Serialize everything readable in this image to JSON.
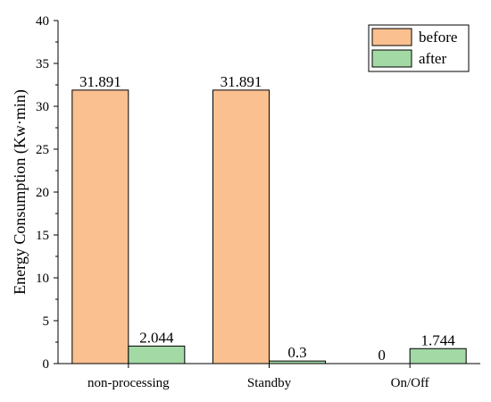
{
  "chart_data": {
    "type": "bar",
    "ylabel": "Energy Consumption (Kw·min)",
    "xlabel": "",
    "ylim": [
      0,
      40
    ],
    "yticks": [
      0,
      5,
      10,
      15,
      20,
      25,
      30,
      35,
      40
    ],
    "grid": false,
    "legend_position": "top-right",
    "categories": [
      "non-processing",
      "Standby",
      "On/Off"
    ],
    "series": [
      {
        "name": "before",
        "color": "#FAC090",
        "values": [
          31.891,
          31.891,
          0
        ],
        "labels": [
          "31.891",
          "31.891",
          "0"
        ]
      },
      {
        "name": "after",
        "color": "#A3D9A5",
        "values": [
          2.044,
          0.3,
          1.744
        ],
        "labels": [
          "2.044",
          "0.3",
          "1.744"
        ]
      }
    ]
  }
}
